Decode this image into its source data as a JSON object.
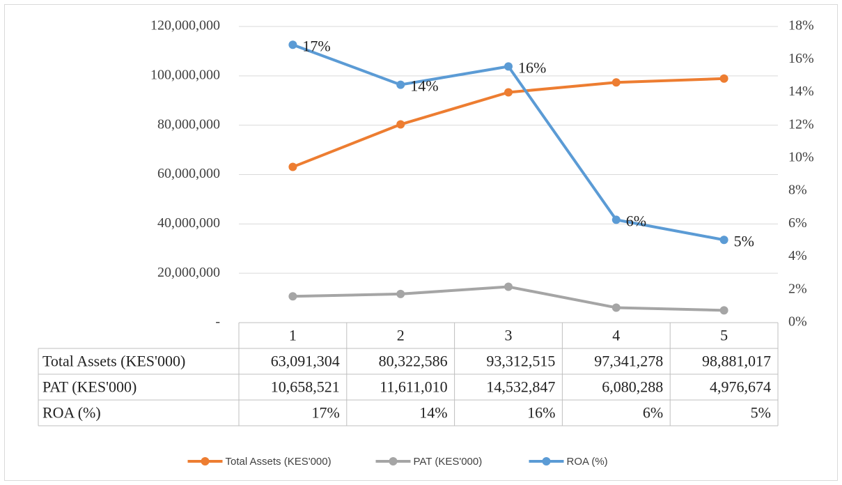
{
  "chart_data": {
    "type": "line",
    "categories": [
      "1",
      "2",
      "3",
      "4",
      "5"
    ],
    "series": [
      {
        "name": "Total Assets (KES'000)",
        "color": "#ed7d31",
        "values": [
          63091304,
          80322586,
          93312515,
          97341278,
          98881017
        ],
        "value_labels": [
          "63,091,304",
          "80,322,586",
          "93,312,515",
          "97,341,278",
          "98,881,017"
        ]
      },
      {
        "name": "PAT (KES'000)",
        "color": "#a5a5a5",
        "values": [
          10658521,
          11611010,
          14532847,
          6080288,
          4976674
        ],
        "value_labels": [
          "10,658,521",
          "11,611,010",
          "14,532,847",
          "6,080,288",
          "4,976,674"
        ]
      },
      {
        "name": "ROA (%)",
        "color": "#5b9bd5",
        "axis": "y2",
        "values": [
          16.89,
          14.46,
          15.57,
          6.25,
          5.03
        ],
        "value_labels": [
          "17%",
          "14%",
          "16%",
          "6%",
          "5%"
        ]
      }
    ],
    "ylim": [
      0,
      120000000
    ],
    "yticks": [
      {
        "value": 0,
        "label": "-"
      },
      {
        "value": 20000000,
        "label": "20,000,000"
      },
      {
        "value": 40000000,
        "label": "40,000,000"
      },
      {
        "value": 60000000,
        "label": "60,000,000"
      },
      {
        "value": 80000000,
        "label": "80,000,000"
      },
      {
        "value": 100000000,
        "label": "100,000,000"
      },
      {
        "value": 120000000,
        "label": "120,000,000"
      }
    ],
    "y2lim": [
      0,
      18
    ],
    "y2ticks": [
      {
        "value": 0,
        "label": "0%"
      },
      {
        "value": 2,
        "label": "2%"
      },
      {
        "value": 4,
        "label": "4%"
      },
      {
        "value": 6,
        "label": "6%"
      },
      {
        "value": 8,
        "label": "8%"
      },
      {
        "value": 10,
        "label": "10%"
      },
      {
        "value": 12,
        "label": "12%"
      },
      {
        "value": 14,
        "label": "14%"
      },
      {
        "value": 16,
        "label": "16%"
      },
      {
        "value": 18,
        "label": "18%"
      }
    ],
    "grid": true,
    "legend": "bottom"
  }
}
